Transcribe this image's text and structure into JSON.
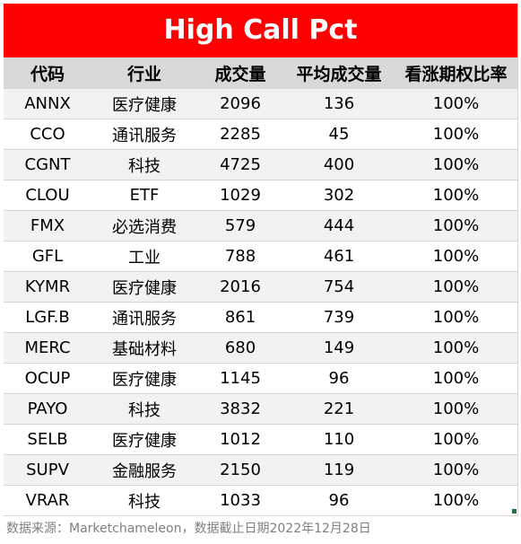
{
  "title": "High Call Pct",
  "headers": [
    "代码",
    "行业",
    "成交量",
    "平均成交量",
    "看涨期权比率"
  ],
  "rows": [
    [
      "ANNX",
      "医疗健康",
      "2096",
      "136",
      "100%"
    ],
    [
      "CCO",
      "通讯服务",
      "2285",
      "45",
      "100%"
    ],
    [
      "CGNT",
      "科技",
      "4725",
      "400",
      "100%"
    ],
    [
      "CLOU",
      "ETF",
      "1029",
      "302",
      "100%"
    ],
    [
      "FMX",
      "必选消费",
      "579",
      "444",
      "100%"
    ],
    [
      "GFL",
      "工业",
      "788",
      "461",
      "100%"
    ],
    [
      "KYMR",
      "医疗健康",
      "2016",
      "754",
      "100%"
    ],
    [
      "LGF.B",
      "通讯服务",
      "861",
      "739",
      "100%"
    ],
    [
      "MERC",
      "基础材料",
      "680",
      "149",
      "100%"
    ],
    [
      "OCUP",
      "医疗健康",
      "1145",
      "96",
      "100%"
    ],
    [
      "PAYO",
      "科技",
      "3832",
      "221",
      "100%"
    ],
    [
      "SELB",
      "医疗健康",
      "1012",
      "110",
      "100%"
    ],
    [
      "SUPV",
      "金融服务",
      "2150",
      "119",
      "100%"
    ],
    [
      "VRAR",
      "科技",
      "1033",
      "96",
      "100%"
    ]
  ],
  "footer": "数据来源：Marketchameleon，数据截止日期2022年12月28日",
  "colors": {
    "title_bg": "#ff0000",
    "title_text": "#ffffff",
    "header_bg": "#d9d9d9",
    "alt_row_bg": "#f2f2f2",
    "grid": "#d4d4d4",
    "footer_text": "#7f7f7f",
    "selection_handle": "#217346"
  }
}
